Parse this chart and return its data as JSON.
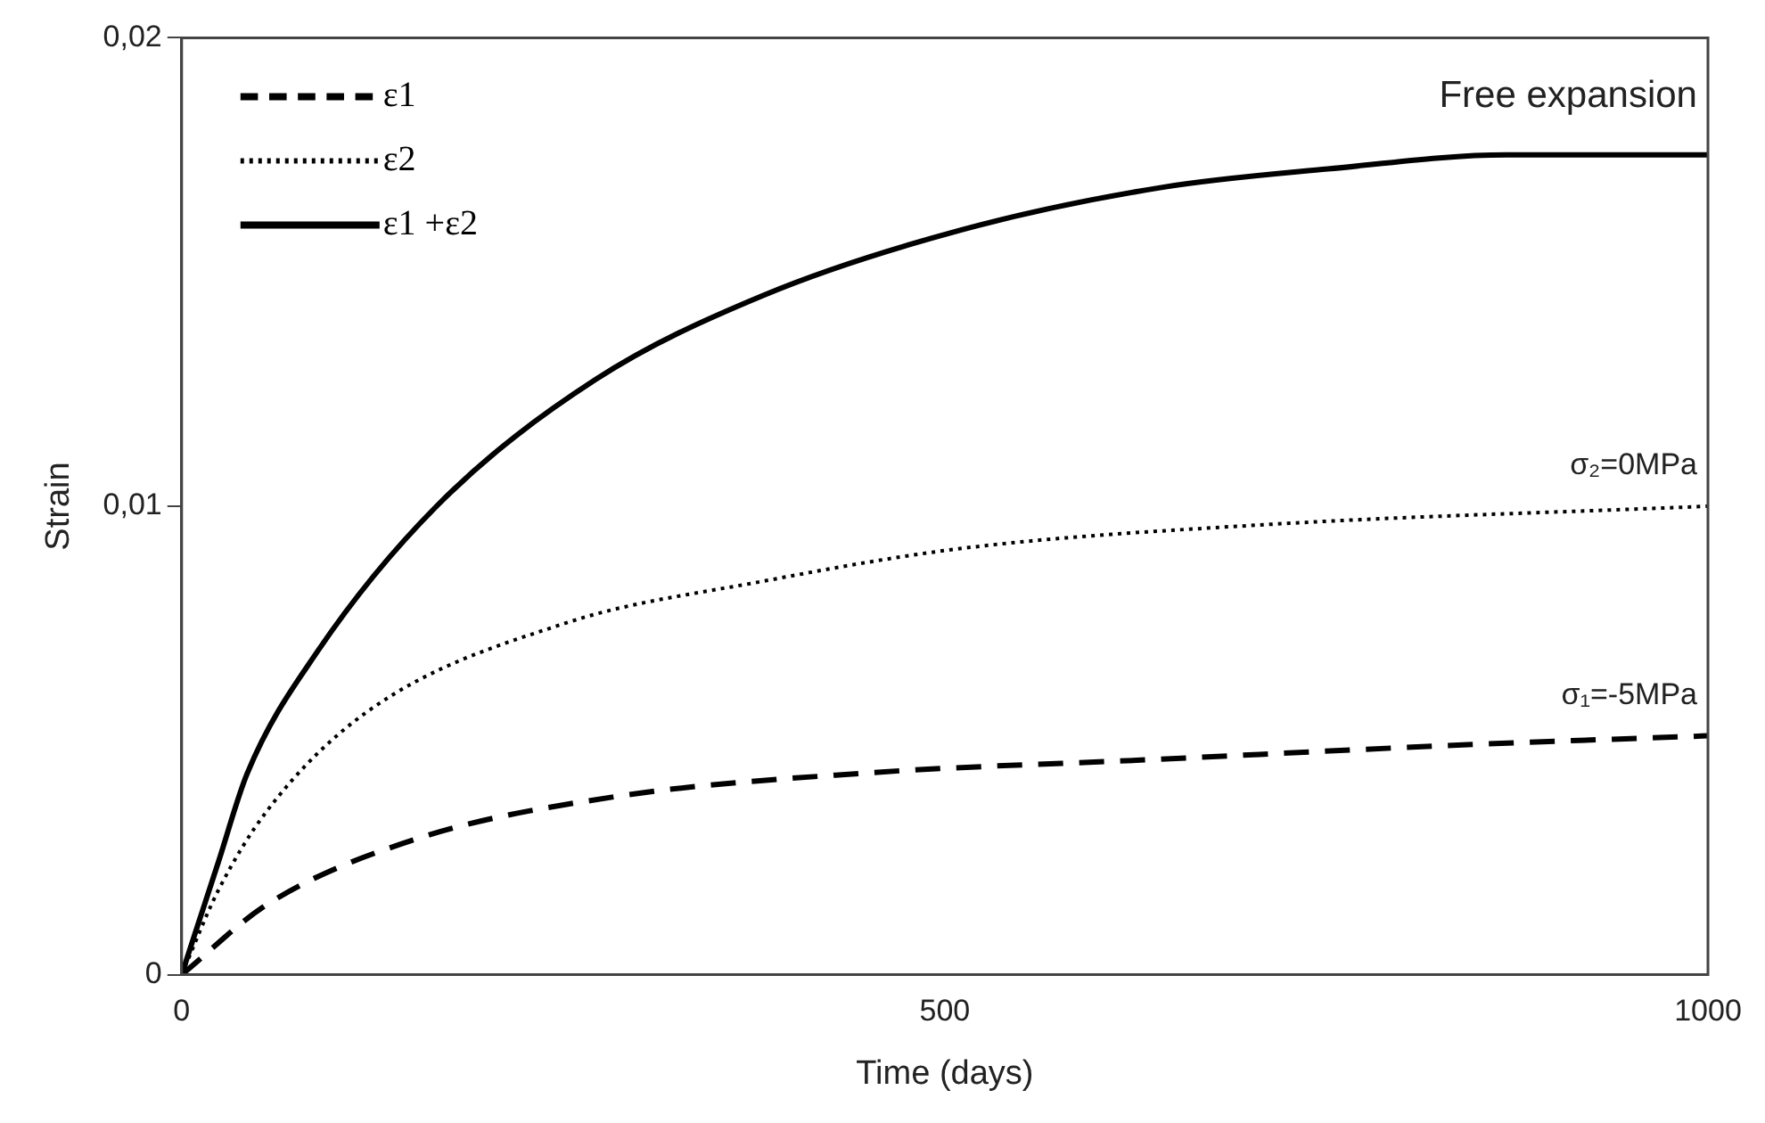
{
  "chart_data": {
    "type": "line",
    "xlabel": "Time (days)",
    "ylabel": "Strain",
    "xlim": [
      0,
      1000
    ],
    "xticks": [
      0,
      500,
      1000
    ],
    "ylim": [
      0,
      0.02
    ],
    "yticks": [
      0,
      {
        "value": 0.01,
        "label": "0,01"
      },
      {
        "value": 0.02,
        "label": "0,02"
      }
    ],
    "grid": false,
    "legend": "top left",
    "marker": "none",
    "series": [
      {
        "name": "ε1",
        "color": "#000000",
        "line_style": "dashed",
        "x": [
          0,
          56,
          154,
          284,
          446,
          641,
          836,
          1000
        ],
        "values": [
          0,
          0.0015,
          0.0029,
          0.0038,
          0.0043,
          0.0046,
          0.0049,
          0.0051
        ]
      },
      {
        "name": "ε2",
        "color": "#000000",
        "line_style": "dotted",
        "x": [
          0,
          24,
          56,
          121,
          251,
          381,
          511,
          706,
          1000
        ],
        "values": [
          0,
          0.0018,
          0.0035,
          0.0056,
          0.0075,
          0.0084,
          0.0091,
          0.0096,
          0.01
        ]
      },
      {
        "name": "ε1 +ε2",
        "color": "#000000",
        "line_style": "solid",
        "x": [
          0,
          24,
          43,
          89,
          167,
          271,
          381,
          511,
          641,
          751,
          868,
          1000
        ],
        "values": [
          0,
          0.0024,
          0.0043,
          0.0069,
          0.01,
          0.0127,
          0.0145,
          0.0159,
          0.0168,
          0.0172,
          0.0175,
          0.0175
        ]
      }
    ],
    "annotations": [
      {
        "text": "Free expansion",
        "y": 0.0175
      },
      {
        "text": "σ₂=0MPa",
        "y": 0.01
      },
      {
        "text": "σ₁=-5MPa",
        "y": 0.0051
      }
    ]
  }
}
